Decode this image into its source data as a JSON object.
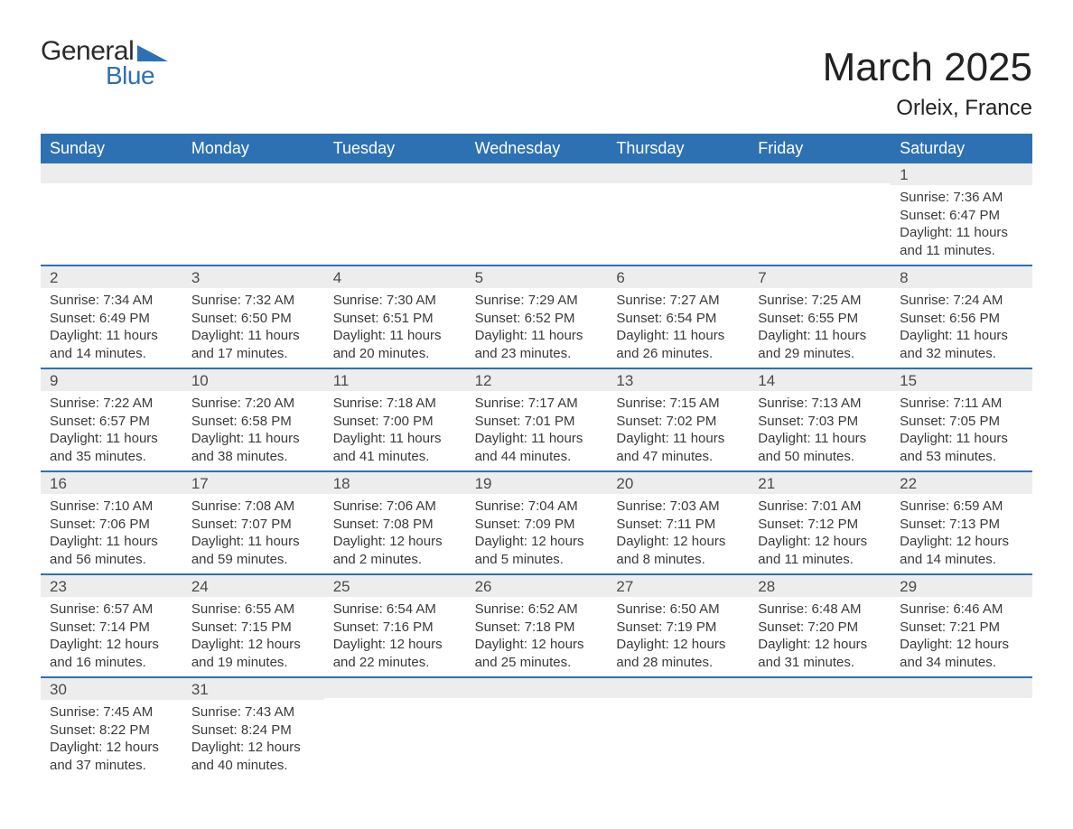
{
  "brand": {
    "word1": "General",
    "word2": "Blue",
    "triangle_color": "#2e71b2",
    "text_color_dark": "#2b2b2b"
  },
  "title": "March 2025",
  "location": "Orleix, France",
  "calendar": {
    "header_bg": "#2e71b2",
    "header_fg": "#ffffff",
    "row_separator_color": "#2e71b2",
    "daynum_bg": "#ededed",
    "text_color": "#3a3a3a",
    "days_of_week": [
      "Sunday",
      "Monday",
      "Tuesday",
      "Wednesday",
      "Thursday",
      "Friday",
      "Saturday"
    ],
    "weeks": [
      [
        {
          "n": "",
          "sunrise": "",
          "sunset": "",
          "daylight": ""
        },
        {
          "n": "",
          "sunrise": "",
          "sunset": "",
          "daylight": ""
        },
        {
          "n": "",
          "sunrise": "",
          "sunset": "",
          "daylight": ""
        },
        {
          "n": "",
          "sunrise": "",
          "sunset": "",
          "daylight": ""
        },
        {
          "n": "",
          "sunrise": "",
          "sunset": "",
          "daylight": ""
        },
        {
          "n": "",
          "sunrise": "",
          "sunset": "",
          "daylight": ""
        },
        {
          "n": "1",
          "sunrise": "Sunrise: 7:36 AM",
          "sunset": "Sunset: 6:47 PM",
          "daylight": "Daylight: 11 hours and 11 minutes."
        }
      ],
      [
        {
          "n": "2",
          "sunrise": "Sunrise: 7:34 AM",
          "sunset": "Sunset: 6:49 PM",
          "daylight": "Daylight: 11 hours and 14 minutes."
        },
        {
          "n": "3",
          "sunrise": "Sunrise: 7:32 AM",
          "sunset": "Sunset: 6:50 PM",
          "daylight": "Daylight: 11 hours and 17 minutes."
        },
        {
          "n": "4",
          "sunrise": "Sunrise: 7:30 AM",
          "sunset": "Sunset: 6:51 PM",
          "daylight": "Daylight: 11 hours and 20 minutes."
        },
        {
          "n": "5",
          "sunrise": "Sunrise: 7:29 AM",
          "sunset": "Sunset: 6:52 PM",
          "daylight": "Daylight: 11 hours and 23 minutes."
        },
        {
          "n": "6",
          "sunrise": "Sunrise: 7:27 AM",
          "sunset": "Sunset: 6:54 PM",
          "daylight": "Daylight: 11 hours and 26 minutes."
        },
        {
          "n": "7",
          "sunrise": "Sunrise: 7:25 AM",
          "sunset": "Sunset: 6:55 PM",
          "daylight": "Daylight: 11 hours and 29 minutes."
        },
        {
          "n": "8",
          "sunrise": "Sunrise: 7:24 AM",
          "sunset": "Sunset: 6:56 PM",
          "daylight": "Daylight: 11 hours and 32 minutes."
        }
      ],
      [
        {
          "n": "9",
          "sunrise": "Sunrise: 7:22 AM",
          "sunset": "Sunset: 6:57 PM",
          "daylight": "Daylight: 11 hours and 35 minutes."
        },
        {
          "n": "10",
          "sunrise": "Sunrise: 7:20 AM",
          "sunset": "Sunset: 6:58 PM",
          "daylight": "Daylight: 11 hours and 38 minutes."
        },
        {
          "n": "11",
          "sunrise": "Sunrise: 7:18 AM",
          "sunset": "Sunset: 7:00 PM",
          "daylight": "Daylight: 11 hours and 41 minutes."
        },
        {
          "n": "12",
          "sunrise": "Sunrise: 7:17 AM",
          "sunset": "Sunset: 7:01 PM",
          "daylight": "Daylight: 11 hours and 44 minutes."
        },
        {
          "n": "13",
          "sunrise": "Sunrise: 7:15 AM",
          "sunset": "Sunset: 7:02 PM",
          "daylight": "Daylight: 11 hours and 47 minutes."
        },
        {
          "n": "14",
          "sunrise": "Sunrise: 7:13 AM",
          "sunset": "Sunset: 7:03 PM",
          "daylight": "Daylight: 11 hours and 50 minutes."
        },
        {
          "n": "15",
          "sunrise": "Sunrise: 7:11 AM",
          "sunset": "Sunset: 7:05 PM",
          "daylight": "Daylight: 11 hours and 53 minutes."
        }
      ],
      [
        {
          "n": "16",
          "sunrise": "Sunrise: 7:10 AM",
          "sunset": "Sunset: 7:06 PM",
          "daylight": "Daylight: 11 hours and 56 minutes."
        },
        {
          "n": "17",
          "sunrise": "Sunrise: 7:08 AM",
          "sunset": "Sunset: 7:07 PM",
          "daylight": "Daylight: 11 hours and 59 minutes."
        },
        {
          "n": "18",
          "sunrise": "Sunrise: 7:06 AM",
          "sunset": "Sunset: 7:08 PM",
          "daylight": "Daylight: 12 hours and 2 minutes."
        },
        {
          "n": "19",
          "sunrise": "Sunrise: 7:04 AM",
          "sunset": "Sunset: 7:09 PM",
          "daylight": "Daylight: 12 hours and 5 minutes."
        },
        {
          "n": "20",
          "sunrise": "Sunrise: 7:03 AM",
          "sunset": "Sunset: 7:11 PM",
          "daylight": "Daylight: 12 hours and 8 minutes."
        },
        {
          "n": "21",
          "sunrise": "Sunrise: 7:01 AM",
          "sunset": "Sunset: 7:12 PM",
          "daylight": "Daylight: 12 hours and 11 minutes."
        },
        {
          "n": "22",
          "sunrise": "Sunrise: 6:59 AM",
          "sunset": "Sunset: 7:13 PM",
          "daylight": "Daylight: 12 hours and 14 minutes."
        }
      ],
      [
        {
          "n": "23",
          "sunrise": "Sunrise: 6:57 AM",
          "sunset": "Sunset: 7:14 PM",
          "daylight": "Daylight: 12 hours and 16 minutes."
        },
        {
          "n": "24",
          "sunrise": "Sunrise: 6:55 AM",
          "sunset": "Sunset: 7:15 PM",
          "daylight": "Daylight: 12 hours and 19 minutes."
        },
        {
          "n": "25",
          "sunrise": "Sunrise: 6:54 AM",
          "sunset": "Sunset: 7:16 PM",
          "daylight": "Daylight: 12 hours and 22 minutes."
        },
        {
          "n": "26",
          "sunrise": "Sunrise: 6:52 AM",
          "sunset": "Sunset: 7:18 PM",
          "daylight": "Daylight: 12 hours and 25 minutes."
        },
        {
          "n": "27",
          "sunrise": "Sunrise: 6:50 AM",
          "sunset": "Sunset: 7:19 PM",
          "daylight": "Daylight: 12 hours and 28 minutes."
        },
        {
          "n": "28",
          "sunrise": "Sunrise: 6:48 AM",
          "sunset": "Sunset: 7:20 PM",
          "daylight": "Daylight: 12 hours and 31 minutes."
        },
        {
          "n": "29",
          "sunrise": "Sunrise: 6:46 AM",
          "sunset": "Sunset: 7:21 PM",
          "daylight": "Daylight: 12 hours and 34 minutes."
        }
      ],
      [
        {
          "n": "30",
          "sunrise": "Sunrise: 7:45 AM",
          "sunset": "Sunset: 8:22 PM",
          "daylight": "Daylight: 12 hours and 37 minutes."
        },
        {
          "n": "31",
          "sunrise": "Sunrise: 7:43 AM",
          "sunset": "Sunset: 8:24 PM",
          "daylight": "Daylight: 12 hours and 40 minutes."
        },
        {
          "n": "",
          "sunrise": "",
          "sunset": "",
          "daylight": ""
        },
        {
          "n": "",
          "sunrise": "",
          "sunset": "",
          "daylight": ""
        },
        {
          "n": "",
          "sunrise": "",
          "sunset": "",
          "daylight": ""
        },
        {
          "n": "",
          "sunrise": "",
          "sunset": "",
          "daylight": ""
        },
        {
          "n": "",
          "sunrise": "",
          "sunset": "",
          "daylight": ""
        }
      ]
    ]
  }
}
